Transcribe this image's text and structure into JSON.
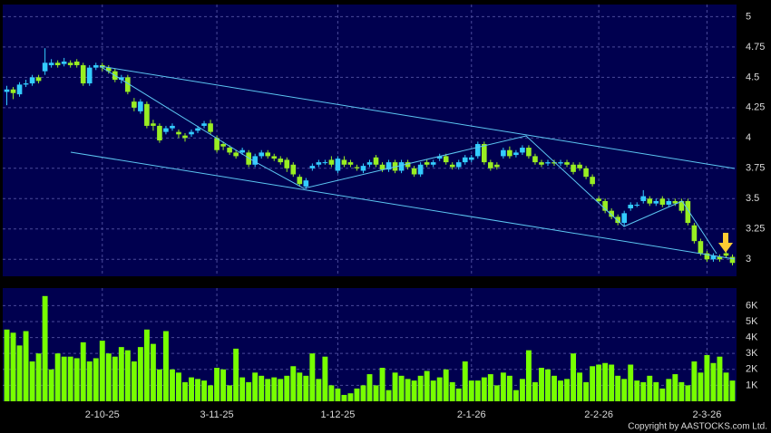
{
  "chart_data": {
    "type": "candlestick",
    "copyright": "Copyright by AASTOCKS.com Ltd.",
    "up_color": "#33ccff",
    "down_color": "#99ee22",
    "volume_color": "#77ff00",
    "grid": true,
    "ylim": [
      2.86,
      5.1
    ],
    "yticks": [
      3,
      3.25,
      3.5,
      3.75,
      4,
      4.25,
      4.5,
      4.75,
      5
    ],
    "y2lim": [
      0,
      7100
    ],
    "y2ticks": [
      {
        "value": 1000,
        "label": "1K"
      },
      {
        "value": 2000,
        "label": "2K"
      },
      {
        "value": 3000,
        "label": "3K"
      },
      {
        "value": 4000,
        "label": "4K"
      },
      {
        "value": 5000,
        "label": "5K"
      },
      {
        "value": 6000,
        "label": "6K"
      }
    ],
    "xticks": [
      {
        "value": 15,
        "label": "2-10-25"
      },
      {
        "value": 33,
        "label": "3-11-25"
      },
      {
        "value": 52,
        "label": "1-12-25"
      },
      {
        "value": 73,
        "label": "2-1-26"
      },
      {
        "value": 93,
        "label": "2-2-26"
      },
      {
        "value": 110,
        "label": "2-3-26"
      }
    ],
    "open": [
      4.38,
      4.4,
      4.36,
      4.44,
      4.45,
      4.5,
      4.55,
      4.6,
      4.62,
      4.61,
      4.62,
      4.63,
      4.6,
      4.45,
      4.58,
      4.6,
      4.58,
      4.55,
      4.48,
      4.5,
      4.3,
      4.22,
      4.28,
      4.12,
      4.1,
      4.05,
      4.08,
      4.05,
      4.02,
      4.03,
      4.06,
      4.1,
      4.12,
      4.0,
      3.95,
      3.92,
      3.88,
      3.88,
      3.88,
      3.78,
      3.85,
      3.88,
      3.85,
      3.83,
      3.82,
      3.78,
      3.68,
      3.6,
      3.75,
      3.78,
      3.8,
      3.82,
      3.73,
      3.82,
      3.8,
      3.76,
      3.73,
      3.78,
      3.84,
      3.78,
      3.74,
      3.8,
      3.73,
      3.8,
      3.75,
      3.7,
      3.8,
      3.78,
      3.83,
      3.85,
      3.78,
      3.76,
      3.8,
      3.82,
      3.85,
      3.95,
      3.8,
      3.78,
      3.85,
      3.9,
      3.86,
      3.88,
      3.92,
      3.85,
      3.8,
      3.79,
      3.8,
      3.79,
      3.8,
      3.78,
      3.78,
      3.75,
      3.68,
      3.5,
      3.48,
      3.4,
      3.35,
      3.3,
      3.42,
      3.45,
      3.48,
      3.5,
      3.46,
      3.5,
      3.45,
      3.48,
      3.48,
      3.48,
      3.28,
      3.15,
      3.05,
      3.0,
      3.02,
      3.05,
      3.02
    ],
    "high": [
      4.43,
      4.42,
      4.46,
      4.48,
      4.52,
      4.52,
      4.74,
      4.65,
      4.64,
      4.66,
      4.64,
      4.65,
      4.62,
      4.6,
      4.62,
      4.62,
      4.6,
      4.57,
      4.52,
      4.52,
      4.33,
      4.32,
      4.3,
      4.15,
      4.12,
      4.1,
      4.12,
      4.07,
      4.04,
      4.07,
      4.1,
      4.14,
      4.15,
      4.02,
      3.97,
      3.94,
      3.9,
      3.92,
      3.9,
      3.87,
      3.9,
      3.9,
      3.87,
      3.85,
      3.84,
      3.8,
      3.7,
      3.67,
      3.79,
      3.82,
      3.82,
      3.85,
      3.85,
      3.85,
      3.82,
      3.78,
      3.79,
      3.82,
      3.86,
      3.8,
      3.82,
      3.82,
      3.82,
      3.82,
      3.77,
      3.8,
      3.82,
      3.82,
      3.87,
      3.87,
      3.8,
      3.82,
      3.86,
      3.86,
      3.97,
      3.97,
      3.82,
      3.8,
      3.92,
      3.93,
      3.9,
      3.94,
      3.94,
      3.87,
      3.82,
      3.82,
      3.82,
      3.82,
      3.82,
      3.8,
      3.8,
      3.77,
      3.7,
      3.52,
      3.5,
      3.42,
      3.37,
      3.4,
      3.47,
      3.47,
      3.57,
      3.52,
      3.5,
      3.52,
      3.5,
      3.5,
      3.5,
      3.5,
      3.3,
      3.17,
      3.07,
      3.05,
      3.04,
      3.07,
      3.04
    ],
    "low": [
      4.27,
      4.32,
      4.34,
      4.42,
      4.43,
      4.45,
      4.52,
      4.58,
      4.58,
      4.59,
      4.58,
      4.58,
      4.43,
      4.43,
      4.56,
      4.55,
      4.53,
      4.46,
      4.45,
      4.36,
      4.22,
      4.2,
      4.08,
      4.06,
      3.96,
      4.03,
      4.06,
      4.0,
      3.97,
      4.01,
      4.04,
      4.08,
      4.03,
      3.88,
      3.9,
      3.86,
      3.83,
      3.86,
      3.76,
      3.76,
      3.83,
      3.83,
      3.81,
      3.78,
      3.72,
      3.68,
      3.6,
      3.58,
      3.73,
      3.76,
      3.78,
      3.76,
      3.71,
      3.76,
      3.76,
      3.73,
      3.71,
      3.76,
      3.76,
      3.72,
      3.72,
      3.71,
      3.71,
      3.74,
      3.68,
      3.68,
      3.76,
      3.76,
      3.81,
      3.78,
      3.74,
      3.74,
      3.78,
      3.8,
      3.83,
      3.78,
      3.73,
      3.74,
      3.83,
      3.83,
      3.84,
      3.86,
      3.83,
      3.78,
      3.76,
      3.77,
      3.77,
      3.77,
      3.76,
      3.7,
      3.73,
      3.66,
      3.6,
      3.46,
      3.38,
      3.33,
      3.28,
      3.27,
      3.4,
      3.43,
      3.46,
      3.44,
      3.44,
      3.43,
      3.43,
      3.44,
      3.38,
      3.28,
      3.13,
      3.03,
      2.98,
      2.98,
      2.98,
      3.01,
      2.95
    ],
    "close": [
      4.4,
      4.37,
      4.44,
      4.45,
      4.5,
      4.47,
      4.62,
      4.62,
      4.6,
      4.63,
      4.6,
      4.6,
      4.45,
      4.58,
      4.6,
      4.58,
      4.55,
      4.48,
      4.5,
      4.38,
      4.25,
      4.3,
      4.1,
      4.1,
      3.98,
      4.08,
      4.1,
      4.03,
      4.0,
      4.05,
      4.08,
      4.12,
      4.05,
      3.9,
      3.93,
      3.88,
      3.85,
      3.9,
      3.78,
      3.85,
      3.88,
      3.85,
      3.83,
      3.8,
      3.75,
      3.7,
      3.62,
      3.65,
      3.77,
      3.8,
      3.8,
      3.78,
      3.83,
      3.78,
      3.78,
      3.75,
      3.77,
      3.8,
      3.78,
      3.74,
      3.8,
      3.73,
      3.8,
      3.76,
      3.7,
      3.78,
      3.78,
      3.8,
      3.85,
      3.8,
      3.76,
      3.8,
      3.84,
      3.84,
      3.95,
      3.8,
      3.75,
      3.76,
      3.9,
      3.85,
      3.88,
      3.92,
      3.85,
      3.8,
      3.78,
      3.8,
      3.79,
      3.8,
      3.78,
      3.72,
      3.75,
      3.68,
      3.62,
      3.48,
      3.4,
      3.35,
      3.3,
      3.38,
      3.45,
      3.45,
      3.52,
      3.46,
      3.48,
      3.45,
      3.48,
      3.46,
      3.4,
      3.3,
      3.15,
      3.05,
      3.0,
      3.03,
      3.0,
      3.03,
      2.97
    ],
    "volume": [
      4500,
      4300,
      3500,
      4400,
      2500,
      3000,
      6600,
      2000,
      3000,
      2800,
      2800,
      2700,
      3700,
      2500,
      2700,
      3800,
      3000,
      2800,
      3400,
      3200,
      2500,
      3400,
      4500,
      3600,
      2000,
      4400,
      2000,
      1800,
      1200,
      1500,
      1400,
      1300,
      1000,
      2100,
      2000,
      1000,
      3300,
      1500,
      1200,
      1800,
      1600,
      1400,
      1500,
      1400,
      1600,
      2200,
      1800,
      1600,
      3000,
      1400,
      2800,
      1000,
      800,
      400,
      500,
      800,
      1000,
      1700,
      1000,
      2100,
      700,
      1800,
      1600,
      1400,
      1300,
      1600,
      1900,
      1300,
      1500,
      2000,
      1200,
      800,
      2500,
      1300,
      1300,
      1500,
      1700,
      1000,
      1800,
      1600,
      700,
      1400,
      3200,
      1200,
      2100,
      2000,
      1600,
      1300,
      1400,
      3000,
      1800,
      1200,
      2200,
      2300,
      2400,
      2300,
      1600,
      1400,
      2300,
      1300,
      1200,
      1600,
      1200,
      800,
      1400,
      1700,
      1200,
      1000,
      2500,
      1800,
      2900,
      2400,
      2800,
      1800,
      1300
    ]
  }
}
